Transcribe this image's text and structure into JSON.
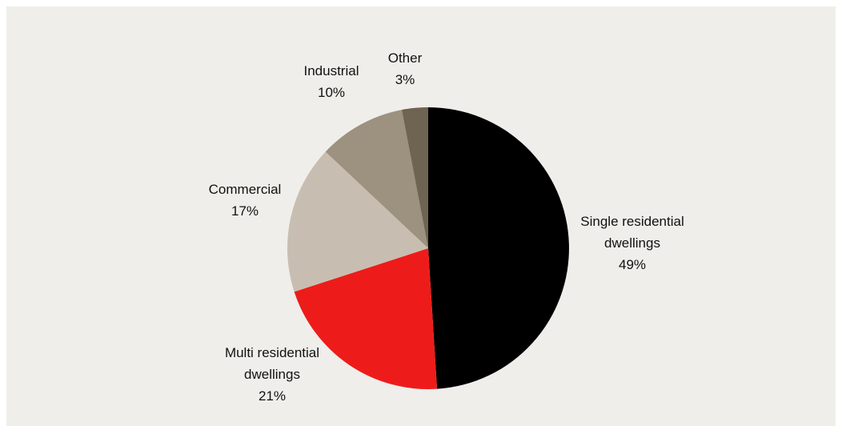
{
  "chart_data": {
    "type": "pie",
    "title": "",
    "slices": [
      {
        "label_lines": [
          "Single residential",
          "dwellings"
        ],
        "value": 49,
        "value_label": "49%",
        "color": "#000000"
      },
      {
        "label_lines": [
          "Multi residential",
          "dwellings"
        ],
        "value": 21,
        "value_label": "21%",
        "color": "#ed1c1a"
      },
      {
        "label_lines": [
          "Commercial"
        ],
        "value": 17,
        "value_label": "17%",
        "color": "#c7beb1"
      },
      {
        "label_lines": [
          "Industrial"
        ],
        "value": 10,
        "value_label": "10%",
        "color": "#9d917f"
      },
      {
        "label_lines": [
          "Other"
        ],
        "value": 3,
        "value_label": "3%",
        "color": "#6f6351"
      }
    ],
    "colors": {
      "background": "#efeeea"
    }
  }
}
